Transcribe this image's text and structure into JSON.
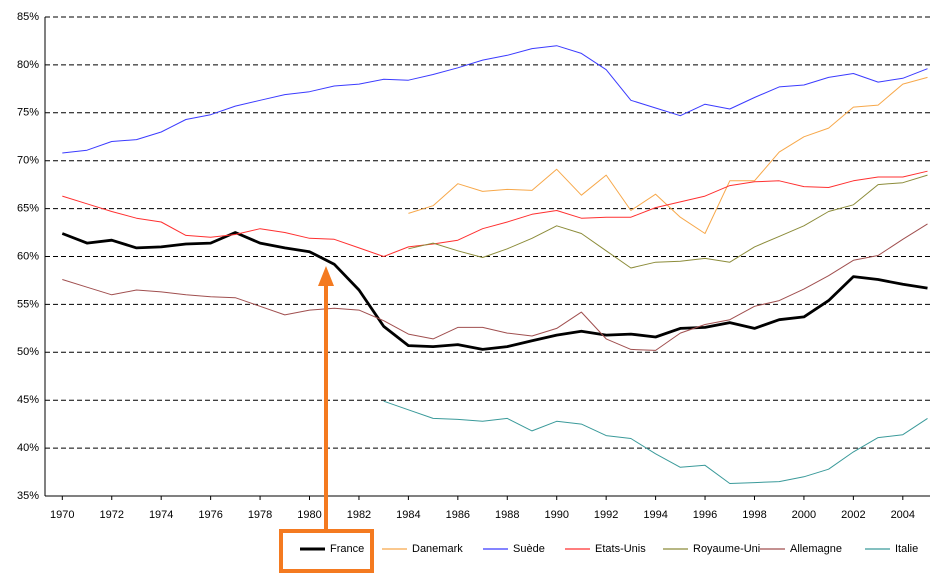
{
  "chart_data": {
    "type": "line",
    "x": [
      1970,
      1971,
      1972,
      1973,
      1974,
      1975,
      1976,
      1977,
      1978,
      1979,
      1980,
      1981,
      1982,
      1983,
      1984,
      1985,
      1986,
      1987,
      1988,
      1989,
      1990,
      1991,
      1992,
      1993,
      1994,
      1995,
      1996,
      1997,
      1998,
      1999,
      2000,
      2001,
      2002,
      2003,
      2004,
      2005
    ],
    "series": [
      {
        "name": "France",
        "color": "#000000",
        "values": [
          62.4,
          61.4,
          61.7,
          60.9,
          61,
          61.3,
          61.4,
          62.5,
          61.4,
          60.9,
          60.5,
          59.2,
          56.5,
          52.7,
          50.7,
          50.6,
          50.8,
          50.3,
          50.6,
          51.2,
          51.8,
          52.2,
          51.8,
          51.9,
          51.6,
          52.5,
          52.6,
          53.1,
          52.5,
          53.4,
          53.7,
          55.4,
          57.9,
          57.6,
          57.1,
          56.7
        ]
      },
      {
        "name": "Danemark",
        "color": "#f7a84a",
        "values": [
          null,
          null,
          null,
          null,
          null,
          null,
          null,
          null,
          null,
          null,
          null,
          null,
          null,
          null,
          64.5,
          65.3,
          67.6,
          66.8,
          67,
          66.9,
          69.1,
          66.4,
          68.5,
          64.8,
          66.5,
          64.1,
          62.4,
          67.9,
          67.9,
          70.9,
          72.5,
          73.4,
          75.6,
          75.8,
          78,
          78.7
        ]
      },
      {
        "name": "Suède",
        "color": "#3b3bff",
        "values": [
          70.8,
          71.1,
          72,
          72.2,
          73,
          74.3,
          74.8,
          75.7,
          76.3,
          76.9,
          77.2,
          77.8,
          78,
          78.5,
          78.4,
          79,
          79.7,
          80.5,
          81,
          81.7,
          82,
          81.2,
          79.5,
          76.3,
          75.5,
          74.7,
          75.9,
          75.4,
          76.6,
          77.7,
          77.9,
          78.7,
          79.1,
          78.2,
          78.6,
          79.6
        ]
      },
      {
        "name": "Etats-Unis",
        "color": "#ff3030",
        "values": [
          66.3,
          65.5,
          64.7,
          64,
          63.6,
          62.2,
          62,
          62.3,
          62.9,
          62.5,
          61.9,
          61.8,
          60.9,
          60,
          61,
          61.3,
          61.7,
          62.9,
          63.6,
          64.4,
          64.8,
          64,
          64.1,
          64.1,
          65.1,
          65.7,
          66.3,
          67.4,
          67.8,
          67.9,
          67.3,
          67.2,
          67.9,
          68.3,
          68.3,
          68.9
        ]
      },
      {
        "name": "Royaume-Uni",
        "color": "#8c8c3a",
        "values": [
          null,
          null,
          null,
          null,
          null,
          null,
          null,
          null,
          null,
          null,
          null,
          null,
          null,
          null,
          60.8,
          61.4,
          60.6,
          59.9,
          60.8,
          61.9,
          63.2,
          62.4,
          60.6,
          58.8,
          59.4,
          59.5,
          59.8,
          59.4,
          61,
          62.1,
          63.2,
          64.7,
          65.4,
          67.5,
          67.7,
          68.5
        ]
      },
      {
        "name": "Allemagne",
        "color": "#a04f4f",
        "values": [
          57.6,
          56.8,
          56,
          56.5,
          56.3,
          56,
          55.8,
          55.7,
          54.8,
          53.9,
          54.4,
          54.6,
          54.4,
          53.3,
          51.9,
          51.4,
          52.6,
          52.6,
          52,
          51.7,
          52.5,
          54.2,
          51.4,
          50.3,
          50.2,
          52,
          52.9,
          53.4,
          54.8,
          55.4,
          56.6,
          58,
          59.6,
          60.1,
          61.8,
          63.4
        ]
      },
      {
        "name": "Italie",
        "color": "#3a9a9a",
        "values": [
          null,
          null,
          null,
          null,
          null,
          null,
          null,
          null,
          null,
          null,
          null,
          null,
          null,
          44.9,
          44,
          43.1,
          43,
          42.8,
          43.1,
          41.8,
          42.8,
          42.5,
          41.3,
          41,
          39.4,
          38,
          38.2,
          36.3,
          36.4,
          36.5,
          37,
          37.8,
          39.6,
          41.1,
          41.4,
          43.1
        ]
      }
    ],
    "xlim": [
      1969.3,
      2005.1
    ],
    "xticks": [
      1970,
      1972,
      1974,
      1976,
      1978,
      1980,
      1982,
      1984,
      1986,
      1988,
      1990,
      1992,
      1994,
      1996,
      1998,
      2000,
      2002,
      2004
    ],
    "ylim": [
      35,
      85
    ],
    "yticks": [
      {
        "value": 35,
        "label": "35%"
      },
      {
        "value": 40,
        "label": "40%"
      },
      {
        "value": 45,
        "label": "45%"
      },
      {
        "value": 50,
        "label": "50%"
      },
      {
        "value": 55,
        "label": "55%"
      },
      {
        "value": 60,
        "label": "60%"
      },
      {
        "value": 65,
        "label": "65%"
      },
      {
        "value": 70,
        "label": "70%"
      },
      {
        "value": 75,
        "label": "75%"
      },
      {
        "value": 80,
        "label": "80%"
      },
      {
        "value": 85,
        "label": "85%"
      }
    ],
    "grid": true,
    "legend": "bottom"
  }
}
